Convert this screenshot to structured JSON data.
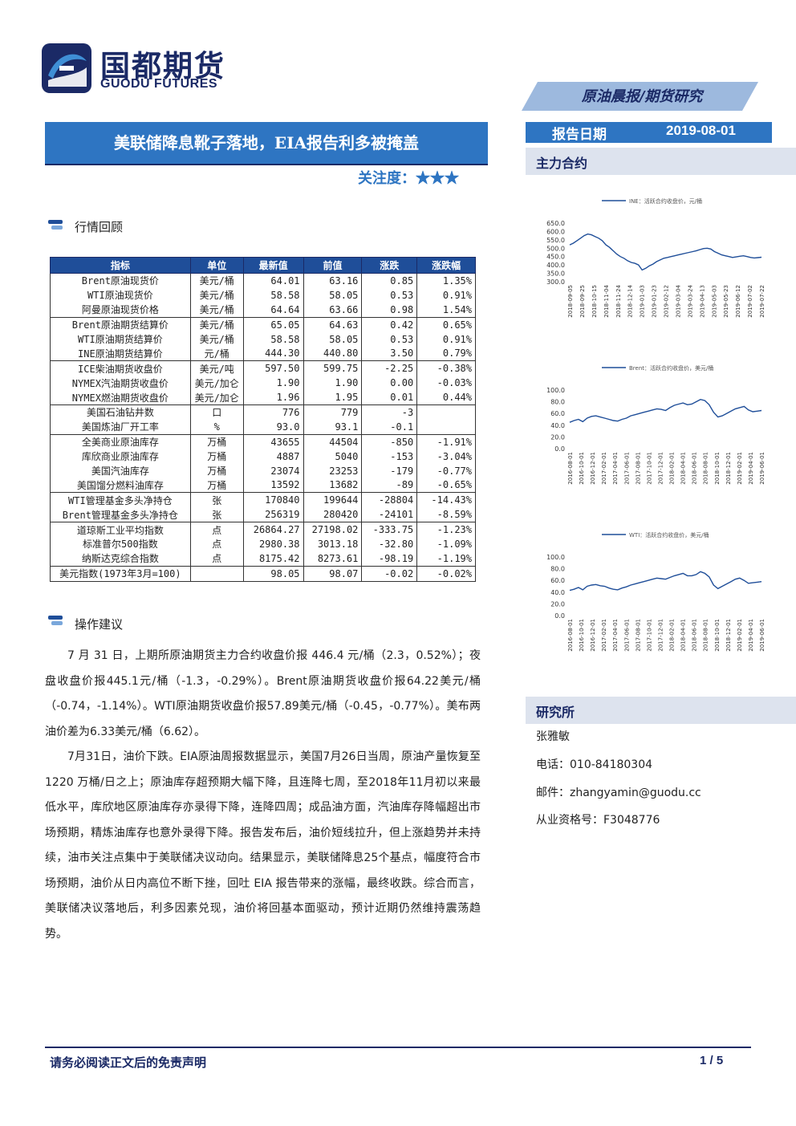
{
  "logo": {
    "cn": "国都期货",
    "en": "GUODU FUTURES"
  },
  "banner": "原油晨报/期货研究",
  "title": "美联储降息靴子落地，EIA报告利多被掩盖",
  "focus": "关注度：★★★",
  "report_date": {
    "label": "报告日期",
    "value": "2019-08-01"
  },
  "sections": {
    "market_review": "行情回顾",
    "suggestion": "操作建议",
    "main_contract": "主力合约",
    "institute": "研究所"
  },
  "table": {
    "headers": [
      "指标",
      "单位",
      "最新值",
      "前值",
      "涨跌",
      "涨跌幅"
    ],
    "groups": [
      [
        [
          "Brent原油现货价",
          "美元/桶",
          "64.01",
          "63.16",
          "0.85",
          "1.35%"
        ],
        [
          "WTI原油现货价",
          "美元/桶",
          "58.58",
          "58.05",
          "0.53",
          "0.91%"
        ],
        [
          "阿曼原油现货价格",
          "美元/桶",
          "64.64",
          "63.66",
          "0.98",
          "1.54%"
        ]
      ],
      [
        [
          "Brent原油期货结算价",
          "美元/桶",
          "65.05",
          "64.63",
          "0.42",
          "0.65%"
        ],
        [
          "WTI原油期货结算价",
          "美元/桶",
          "58.58",
          "58.05",
          "0.53",
          "0.91%"
        ],
        [
          "INE原油期货结算价",
          "元/桶",
          "444.30",
          "440.80",
          "3.50",
          "0.79%"
        ]
      ],
      [
        [
          "ICE柴油期货收盘价",
          "美元/吨",
          "597.50",
          "599.75",
          "-2.25",
          "-0.38%"
        ],
        [
          "NYMEX汽油期货收盘价",
          "美元/加仑",
          "1.90",
          "1.90",
          "0.00",
          "-0.03%"
        ],
        [
          "NYMEX燃油期货收盘价",
          "美元/加仑",
          "1.96",
          "1.95",
          "0.01",
          "0.44%"
        ]
      ],
      [
        [
          "美国石油钻井数",
          "口",
          "776",
          "779",
          "-3",
          ""
        ],
        [
          "美国炼油厂开工率",
          "%",
          "93.0",
          "93.1",
          "-0.1",
          ""
        ]
      ],
      [
        [
          "全美商业原油库存",
          "万桶",
          "43655",
          "44504",
          "-850",
          "-1.91%"
        ],
        [
          "库欣商业原油库存",
          "万桶",
          "4887",
          "5040",
          "-153",
          "-3.04%"
        ],
        [
          "美国汽油库存",
          "万桶",
          "23074",
          "23253",
          "-179",
          "-0.77%"
        ],
        [
          "美国馏分燃料油库存",
          "万桶",
          "13592",
          "13682",
          "-89",
          "-0.65%"
        ]
      ],
      [
        [
          "WTI管理基金多头净持仓",
          "张",
          "170840",
          "199644",
          "-28804",
          "-14.43%"
        ],
        [
          "Brent管理基金多头净持仓",
          "张",
          "256319",
          "280420",
          "-24101",
          "-8.59%"
        ]
      ],
      [
        [
          "道琼斯工业平均指数",
          "点",
          "26864.27",
          "27198.02",
          "-333.75",
          "-1.23%"
        ],
        [
          "标准普尔500指数",
          "点",
          "2980.38",
          "3013.18",
          "-32.80",
          "-1.09%"
        ],
        [
          "纳斯达克综合指数",
          "点",
          "8175.42",
          "8273.61",
          "-98.19",
          "-1.19%"
        ]
      ],
      [
        [
          "美元指数(1973年3月=100)",
          "",
          "98.05",
          "98.07",
          "-0.02",
          "-0.02%"
        ]
      ]
    ]
  },
  "paragraphs": [
    "7 月 31 日，上期所原油期货主力合约收盘价报 446.4 元/桶（2.3，0.52%）；夜盘收盘价报445.1元/桶（-1.3，-0.29%）。Brent原油期货收盘价报64.22美元/桶（-0.74，-1.14%）。WTI原油期货收盘价报57.89美元/桶（-0.45，-0.77%）。美布两油价差为6.33美元/桶（6.62）。",
    "7月31日，油价下跌。EIA原油周报数据显示，美国7月26日当周，原油产量恢复至 1220 万桶/日之上；原油库存超预期大幅下降，且连降七周，至2018年11月初以来最低水平，库欣地区原油库存亦录得下降，连降四周；成品油方面，汽油库存降幅超出市场预期，精炼油库存也意外录得下降。报告发布后，油价短线拉升，但上涨趋势并未持续，油市关注点集中于美联储决议动向。结果显示，美联储降息25个基点，幅度符合市场预期，油价从日内高位不断下挫，回吐 EIA 报告带来的涨幅，最终收跌。综合而言，美联储决议落地后，利多因素兑现，油价将回基本面驱动，预计近期仍然维持震荡趋势。"
  ],
  "chart_data": [
    {
      "type": "line",
      "series": [
        {
          "name": "INE：活跃合约收盘价，元/桶"
        }
      ],
      "yticks": [
        "650.0",
        "600.0",
        "550.0",
        "500.0",
        "450.0",
        "400.0",
        "350.0",
        "300.0"
      ],
      "ylim": [
        300,
        650
      ],
      "xticks": [
        "2018-09-05",
        "2018-09-25",
        "2018-10-15",
        "2018-11-04",
        "2018-11-24",
        "2018-12-14",
        "2019-01-03",
        "2019-01-23",
        "2019-02-12",
        "2019-03-04",
        "2019-03-24",
        "2019-04-13",
        "2019-05-03",
        "2019-05-23",
        "2019-06-12",
        "2019-07-02",
        "2019-07-22"
      ],
      "values": [
        520,
        530,
        545,
        560,
        575,
        585,
        580,
        570,
        560,
        545,
        520,
        505,
        485,
        465,
        450,
        440,
        425,
        415,
        410,
        400,
        370,
        380,
        395,
        405,
        420,
        430,
        440,
        445,
        450,
        455,
        460,
        465,
        470,
        475,
        480,
        485,
        492,
        498,
        500,
        495,
        480,
        470,
        460,
        455,
        450,
        445,
        448,
        452,
        455,
        450,
        445,
        442,
        444,
        446
      ]
    },
    {
      "type": "line",
      "series": [
        {
          "name": "Brent：活跃合约收盘价，美元/桶"
        }
      ],
      "yticks": [
        "100.0",
        "80.0",
        "60.0",
        "40.0",
        "20.0",
        "0.0"
      ],
      "ylim": [
        0,
        100
      ],
      "xticks": [
        "2016-08-01",
        "2016-10-01",
        "2016-12-01",
        "2017-02-01",
        "2017-04-01",
        "2017-06-01",
        "2017-08-01",
        "2017-10-01",
        "2017-12-01",
        "2018-02-01",
        "2018-04-01",
        "2018-06-01",
        "2018-08-01",
        "2018-10-01",
        "2018-12-01",
        "2019-02-01",
        "2019-04-01",
        "2019-06-01"
      ],
      "values": [
        45,
        48,
        50,
        46,
        52,
        55,
        56,
        54,
        52,
        50,
        48,
        47,
        50,
        52,
        56,
        58,
        60,
        62,
        64,
        66,
        68,
        67,
        65,
        70,
        74,
        76,
        78,
        75,
        76,
        80,
        84,
        82,
        75,
        62,
        54,
        56,
        60,
        64,
        68,
        70,
        72,
        66,
        63,
        64,
        65
      ]
    },
    {
      "type": "line",
      "series": [
        {
          "name": "WTI：活跃合约收盘价，美元/桶"
        }
      ],
      "yticks": [
        "100.0",
        "80.0",
        "60.0",
        "40.0",
        "20.0",
        "0.0"
      ],
      "ylim": [
        0,
        100
      ],
      "xticks": [
        "2016-08-01",
        "2016-10-01",
        "2016-12-01",
        "2017-02-01",
        "2017-04-01",
        "2017-06-01",
        "2017-08-01",
        "2017-10-01",
        "2017-12-01",
        "2018-02-01",
        "2018-04-01",
        "2018-06-01",
        "2018-08-01",
        "2018-10-01",
        "2018-12-01",
        "2019-02-01",
        "2019-04-01",
        "2019-06-01"
      ],
      "values": [
        43,
        45,
        48,
        44,
        50,
        52,
        53,
        51,
        50,
        47,
        45,
        44,
        47,
        49,
        52,
        54,
        56,
        58,
        60,
        62,
        64,
        63,
        62,
        65,
        68,
        70,
        72,
        68,
        68,
        70,
        75,
        72,
        66,
        52,
        46,
        50,
        54,
        58,
        62,
        64,
        60,
        55,
        56,
        57,
        58
      ]
    }
  ],
  "researcher": {
    "name": "张雅敏",
    "phone": "电话：010-84180304",
    "email": "邮件：zhangyamin@guodu.cc",
    "license": "从业资格号：F3048776"
  },
  "footer": {
    "disclaimer": "请务必阅读正文后的免责声明",
    "page": "1 / 5"
  },
  "colors": {
    "brand": "#1b2a66",
    "accent": "#2e75c2",
    "line": "#1f4e99"
  }
}
